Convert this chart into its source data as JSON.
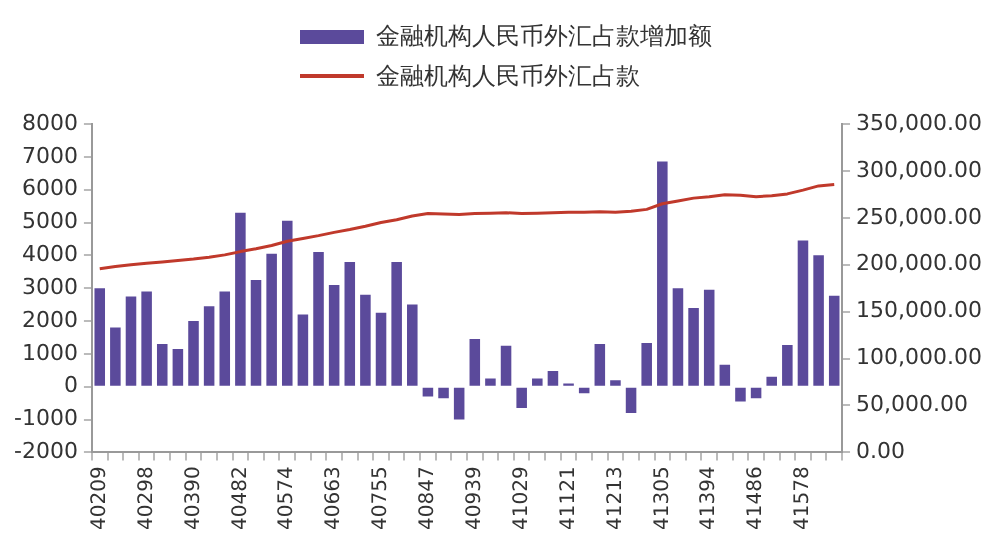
{
  "chart_data": {
    "type": "bar",
    "categories": [
      "40209",
      null,
      null,
      "40298",
      null,
      null,
      "40390",
      null,
      null,
      "40482",
      null,
      null,
      "40574",
      null,
      null,
      "40663",
      null,
      null,
      "40755",
      null,
      null,
      "40847",
      null,
      null,
      "40939",
      null,
      null,
      "41029",
      null,
      null,
      "41121",
      null,
      null,
      "41213",
      null,
      null,
      "41305",
      null,
      null,
      "41394",
      null,
      null,
      "41486",
      null,
      null,
      "41578",
      null,
      null
    ],
    "series": [
      {
        "name": "金融机构人民币外汇占款增加额",
        "color": "#5b4a9b",
        "values": [
          3000,
          1800,
          2750,
          2900,
          1300,
          1150,
          2000,
          2450,
          2900,
          5300,
          3250,
          4050,
          5050,
          2200,
          4100,
          3100,
          3800,
          2800,
          2250,
          3800,
          2500,
          -300,
          -350,
          -1000,
          1450,
          250,
          1250,
          -650,
          250,
          480,
          100,
          -200,
          1300,
          200,
          -800,
          1330,
          6860,
          3000,
          2400,
          2950,
          670,
          -450,
          -350,
          300,
          1270,
          4450,
          4000,
          2770
        ]
      },
      {
        "name": "金融机构人民币外汇占款",
        "type": "line",
        "axis": "y2",
        "color": "#c0392b",
        "values": [
          195700,
          198000,
          200000,
          201500,
          203000,
          204500,
          206000,
          208000,
          210500,
          214000,
          217000,
          220500,
          225000,
          228000,
          231000,
          234500,
          237500,
          241000,
          245000,
          248000,
          252000,
          254500,
          254000,
          253500,
          254500,
          255000,
          255500,
          254500,
          255000,
          255500,
          256000,
          256000,
          256500,
          256000,
          257000,
          259000,
          265000,
          268000,
          271000,
          272500,
          274500,
          274000,
          272500,
          273500,
          275500,
          279500,
          284000,
          285500
        ]
      }
    ],
    "ylim": [
      -2000,
      8000
    ],
    "yticks": [
      -2000,
      -1000,
      0,
      1000,
      2000,
      3000,
      4000,
      5000,
      6000,
      7000,
      8000
    ],
    "y2lim": [
      0,
      350000
    ],
    "y2ticks": [
      {
        "value": 0,
        "label": "0.00"
      },
      {
        "value": 50000,
        "label": "50,000.00"
      },
      {
        "value": 100000,
        "label": "100,000.00"
      },
      {
        "value": 150000,
        "label": "150,000.00"
      },
      {
        "value": 200000,
        "label": "200,000.00"
      },
      {
        "value": 250000,
        "label": "250,000.00"
      },
      {
        "value": 300000,
        "label": "300,000.00"
      },
      {
        "value": 350000,
        "label": "350,000.00"
      }
    ],
    "legend": "top"
  }
}
